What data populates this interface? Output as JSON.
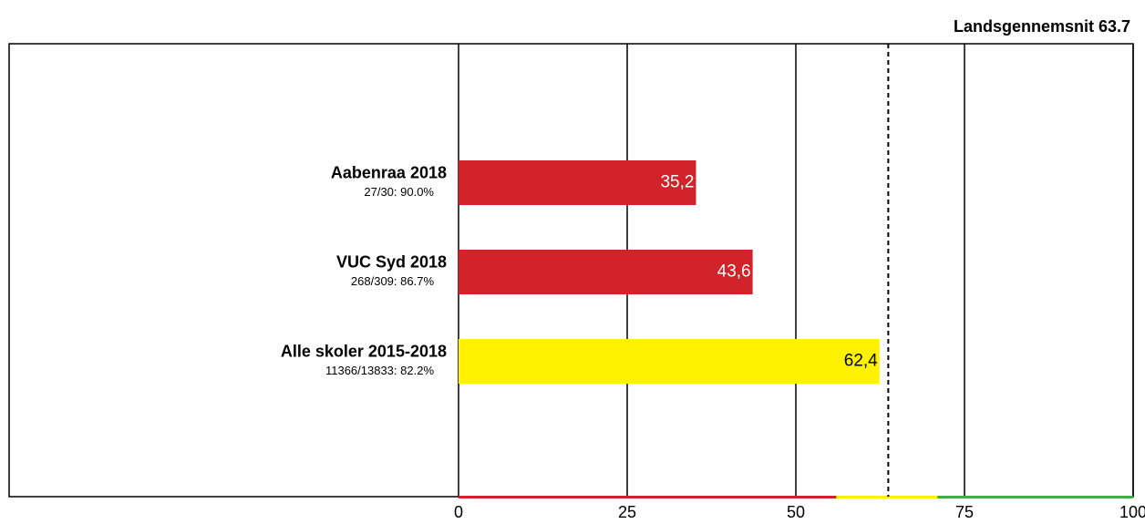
{
  "chart_data": {
    "type": "barh",
    "categories": [
      "Aabenraa 2018",
      "VUC Syd 2018",
      "Alle skoler 2015-2018"
    ],
    "sublabels": [
      "27/30: 90.0%",
      "268/309: 86.7%",
      "11366/13833: 82.2%"
    ],
    "values": [
      35.2,
      43.6,
      62.4
    ],
    "value_labels": [
      "35,2",
      "43,6",
      "62,4"
    ],
    "colors": [
      "#d2232a",
      "#d2232a",
      "#fff200"
    ],
    "label_colors": [
      "#ffffff",
      "#ffffff",
      "#000000"
    ],
    "xlim": [
      0,
      100
    ],
    "xticks": [
      0,
      25,
      50,
      75,
      100
    ],
    "grid": true,
    "reference_line": {
      "label": "Landsgennemsnit 63.7",
      "value": 63.7
    },
    "bands": [
      {
        "from": 0,
        "to": 56,
        "color": "#d2232a"
      },
      {
        "from": 56,
        "to": 71,
        "color": "#fff200"
      },
      {
        "from": 71,
        "to": 100,
        "color": "#3cb043"
      }
    ]
  }
}
